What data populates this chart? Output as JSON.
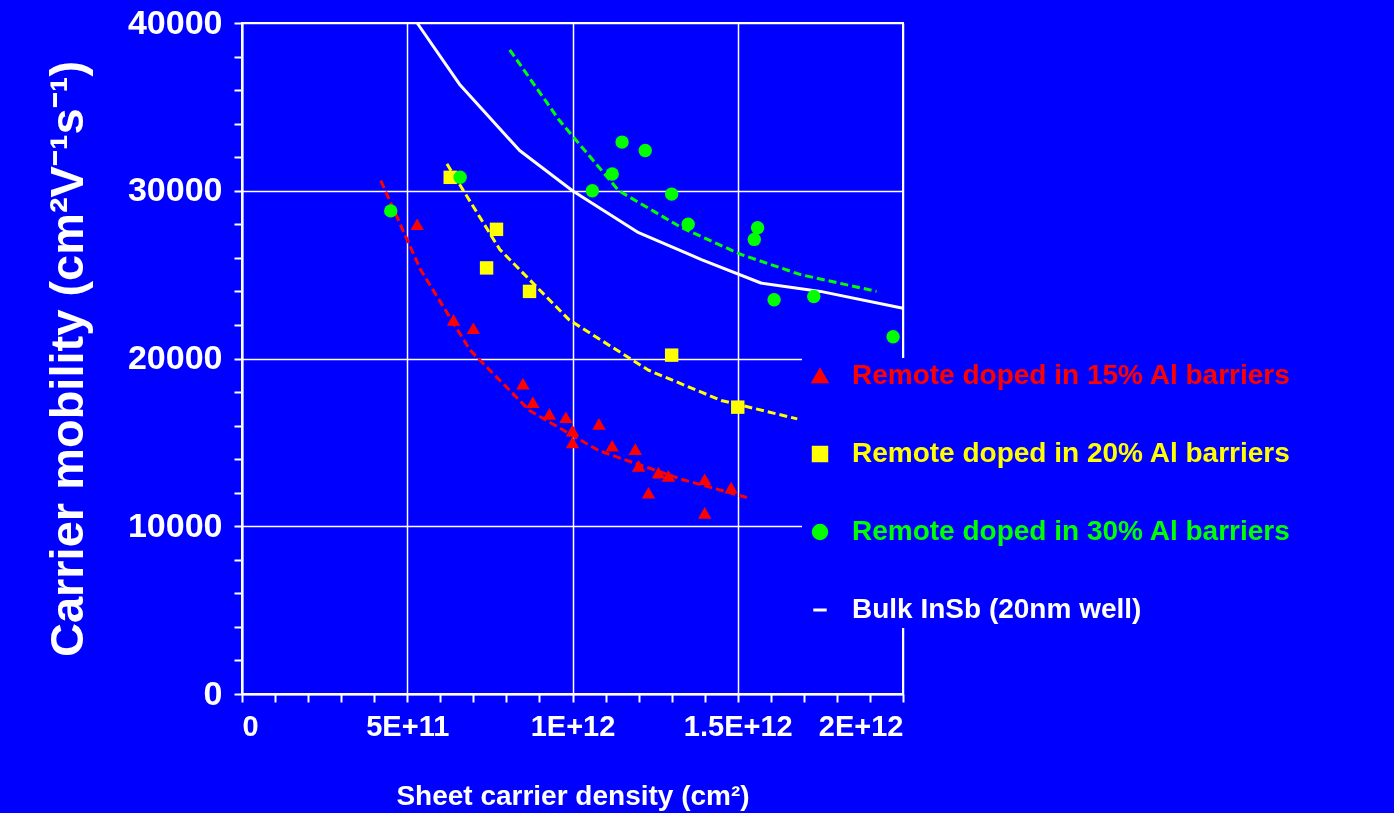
{
  "chart_data": {
    "type": "scatter",
    "xlabel": "Sheet carrier density (cm²)",
    "ylabel": "Carrier mobility (cm²V⁻¹s⁻¹)",
    "xlim": [
      0,
      2000000000000
    ],
    "ylim": [
      0,
      40000
    ],
    "xticks": [
      0,
      {
        "value": 100000000000,
        "label": null
      },
      {
        "value": 200000000000,
        "label": null
      },
      {
        "value": 300000000000,
        "label": null
      },
      {
        "value": 400000000000,
        "label": null
      },
      {
        "value": 500000000000,
        "label": "5E+11"
      },
      {
        "value": 600000000000,
        "label": null
      },
      {
        "value": 700000000000,
        "label": null
      },
      {
        "value": 800000000000,
        "label": null
      },
      {
        "value": 900000000000,
        "label": null
      },
      {
        "value": 1000000000000,
        "label": "1E+12"
      },
      {
        "value": 1100000000000,
        "label": null
      },
      {
        "value": 1200000000000,
        "label": null
      },
      {
        "value": 1300000000000,
        "label": null
      },
      {
        "value": 1400000000000,
        "label": null
      },
      {
        "value": 1500000000000,
        "label": "1.5E+12"
      },
      {
        "value": 1600000000000,
        "label": null
      },
      {
        "value": 1700000000000,
        "label": null
      },
      {
        "value": 1800000000000,
        "label": null
      },
      {
        "value": 1900000000000,
        "label": null
      },
      {
        "value": 2000000000000,
        "label": "2E+12"
      }
    ],
    "yticks": [
      0,
      {
        "value": 2000,
        "label": null
      },
      {
        "value": 4000,
        "label": null
      },
      {
        "value": 6000,
        "label": null
      },
      {
        "value": 8000,
        "label": null
      },
      10000,
      {
        "value": 12000,
        "label": null
      },
      {
        "value": 14000,
        "label": null
      },
      {
        "value": 16000,
        "label": null
      },
      {
        "value": 18000,
        "label": null
      },
      20000,
      {
        "value": 22000,
        "label": null
      },
      {
        "value": 24000,
        "label": null
      },
      {
        "value": 26000,
        "label": null
      },
      {
        "value": 28000,
        "label": null
      },
      30000,
      {
        "value": 32000,
        "label": null
      },
      {
        "value": 34000,
        "label": null
      },
      {
        "value": 36000,
        "label": null
      },
      {
        "value": 38000,
        "label": null
      },
      40000
    ],
    "grid": true,
    "legend": "right",
    "series": [
      {
        "name": "Remote doped in 15% Al barriers",
        "marker": "triangle",
        "color": "#ff0000",
        "x": [
          530000000000,
          640000000000,
          700000000000,
          850000000000,
          880000000000,
          930000000000,
          980000000000,
          1000000000000,
          1000000000000,
          1080000000000,
          1120000000000,
          1190000000000,
          1200000000000,
          1230000000000,
          1260000000000,
          1290000000000,
          1400000000000,
          1400000000000,
          1480000000000
        ],
        "values": [
          28000,
          22300,
          21800,
          18500,
          17400,
          16700,
          16500,
          15700,
          15000,
          16100,
          14800,
          14600,
          13600,
          12000,
          13200,
          13000,
          12800,
          10800,
          12300
        ]
      },
      {
        "name": "Remote doped in 20% Al barriers",
        "marker": "square",
        "color": "#ffff00",
        "x": [
          630000000000,
          770000000000,
          740000000000,
          870000000000,
          1300000000000,
          1500000000000
        ],
        "values": [
          30800,
          27700,
          25400,
          24000,
          20200,
          17100
        ]
      },
      {
        "name": "Remote doped in 30% Al barriers",
        "marker": "circle",
        "color": "#00ff00",
        "x": [
          450000000000,
          660000000000,
          1060000000000,
          1120000000000,
          1150000000000,
          1220000000000,
          1300000000000,
          1350000000000,
          1550000000000,
          1560000000000,
          1610000000000,
          1730000000000,
          1970000000000
        ],
        "values": [
          28800,
          30800,
          30000,
          31000,
          32900,
          32400,
          29800,
          28000,
          27100,
          27800,
          23500,
          23700,
          21300
        ]
      },
      {
        "name": "Bulk InSb (20nm well)",
        "type": "line",
        "line_style": "solid",
        "color": "#ffffff",
        "x": [
          530000000000,
          660000000000,
          840000000000,
          1000000000000,
          1200000000000,
          1390000000000,
          1570000000000,
          1750000000000,
          2000000000000
        ],
        "values": [
          40000,
          36300,
          32400,
          30000,
          27500,
          25900,
          24500,
          24000,
          23000
        ]
      },
      {
        "type": "line",
        "line_style": "dashed",
        "color": "#ff0000",
        "x": [
          420000000000,
          540000000000,
          690000000000,
          870000000000,
          1080000000000,
          1330000000000,
          1530000000000
        ],
        "values": [
          30600,
          25300,
          20500,
          16900,
          14500,
          12800,
          11700
        ]
      },
      {
        "type": "line",
        "line_style": "dashed",
        "color": "#ffff00",
        "x": [
          620000000000,
          780000000000,
          990000000000,
          1230000000000,
          1450000000000,
          1680000000000
        ],
        "values": [
          31600,
          26500,
          22300,
          19300,
          17500,
          16400
        ]
      },
      {
        "type": "line",
        "line_style": "dashed",
        "color": "#00ff00",
        "x": [
          810000000000,
          960000000000,
          1140000000000,
          1330000000000,
          1510000000000,
          1690000000000,
          1920000000000
        ],
        "values": [
          38400,
          34200,
          30000,
          27800,
          26200,
          25000,
          24000
        ]
      }
    ]
  }
}
